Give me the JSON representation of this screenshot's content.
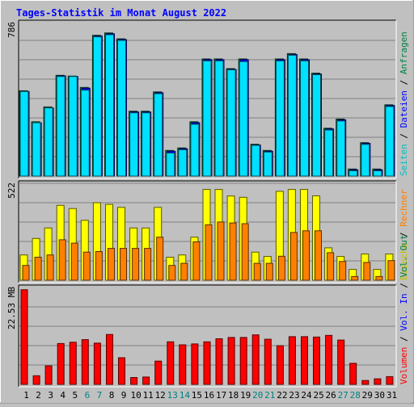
{
  "chart_data": {
    "title": "Tages-Statistik im Monat August 2022",
    "type": "bar",
    "days": [
      "1",
      "2",
      "3",
      "4",
      "5",
      "6",
      "7",
      "8",
      "9",
      "10",
      "11",
      "12",
      "13",
      "14",
      "15",
      "16",
      "17",
      "18",
      "19",
      "20",
      "21",
      "22",
      "23",
      "24",
      "25",
      "26",
      "27",
      "28",
      "29",
      "30",
      "31"
    ],
    "weekend_days": [
      "6",
      "7",
      "13",
      "14",
      "20",
      "21",
      "27",
      "28"
    ],
    "panels": [
      {
        "scale_label": "786",
        "ymax": 786,
        "series": [
          {
            "name": "Anfragen",
            "color": "#008040",
            "values": [
              437,
              278,
              354,
              516,
              512,
              454,
              721,
              733,
              703,
              332,
              332,
              431,
              131,
              144,
              278,
              600,
              600,
              550,
              600,
              163,
              131,
              600,
              627,
              600,
              527,
              245,
              292,
              36,
              171,
              36,
              365
            ]
          },
          {
            "name": "Dateien",
            "color": "#0000ff",
            "values": [
              433,
              273,
              349,
              513,
              510,
              450,
              717,
              729,
              699,
              328,
              328,
              427,
              127,
              140,
              273,
              596,
              596,
              546,
              596,
              159,
              127,
              596,
              623,
              596,
              523,
              241,
              288,
              32,
              167,
              32,
              361
            ]
          },
          {
            "name": "Seiten",
            "color": "#00e0ff",
            "values": [
              433,
              273,
              349,
              510,
              510,
              440,
              713,
              724,
              695,
              324,
              324,
              422,
              118,
              135,
              265,
              590,
              590,
              544,
              586,
              157,
              123,
              590,
              619,
              590,
              519,
              236,
              282,
              27,
              162,
              27,
              356
            ]
          }
        ]
      },
      {
        "scale_label": "522",
        "ymax": 522,
        "series": [
          {
            "name": "Besuche",
            "color": "#ffff00",
            "values": [
              135,
              223,
              279,
              400,
              383,
              320,
              414,
              405,
              389,
              279,
              279,
              389,
              123,
              135,
              230,
              485,
              485,
              450,
              443,
              150,
              127,
              475,
              485,
              485,
              451,
              173,
              127,
              58,
              140,
              58,
              140
            ]
          },
          {
            "name": "Rechner",
            "color": "#ff8000",
            "values": [
              79,
              123,
              135,
              216,
              198,
              150,
              153,
              170,
              170,
              170,
              170,
              230,
              79,
              90,
              205,
              296,
              311,
              306,
              302,
              90,
              90,
              128,
              255,
              264,
              264,
              147,
              100,
              20,
              95,
              20,
              105
            ]
          }
        ]
      },
      {
        "scale_label": "22.53 MB",
        "ymax": 22.53,
        "series": [
          {
            "name": "Volumen",
            "color": "#ff0000",
            "values": [
              22.0,
              2.0,
              4.3,
              9.5,
              9.8,
              10.4,
              9.6,
              11.6,
              6.2,
              1.6,
              1.7,
              5.4,
              9.9,
              9.2,
              9.4,
              9.9,
              10.6,
              10.9,
              10.9,
              11.5,
              10.5,
              9.0,
              11.1,
              11.1,
              11.0,
              11.4,
              10.3,
              4.9,
              0.9,
              1.3,
              1.8
            ]
          }
        ]
      }
    ],
    "right_legend_top": [
      {
        "label": "Seiten",
        "color": "#00c0c0"
      },
      {
        "label": "/",
        "color": "#000000"
      },
      {
        "label": "Dateien",
        "color": "#0000ff"
      },
      {
        "label": "/",
        "color": "#000000"
      },
      {
        "label": "Anfragen",
        "color": "#008040"
      }
    ],
    "right_legend_mid": [
      {
        "label": "Besuche",
        "color": "#c0c000"
      },
      {
        "label": "/",
        "color": "#000000"
      },
      {
        "label": "Rechner",
        "color": "#ff8000"
      }
    ],
    "right_legend_bottom": [
      {
        "label": "Volumen",
        "color": "#ff0000"
      },
      {
        "label": "/",
        "color": "#000000"
      },
      {
        "label": "Vol. In",
        "color": "#0000ff"
      },
      {
        "label": "/",
        "color": "#000000"
      },
      {
        "label": "Vol. Out",
        "color": "#008040"
      }
    ],
    "weekday_label_color": "#000000",
    "weekend_label_color": "#008080",
    "title_color": "#0000ff"
  }
}
